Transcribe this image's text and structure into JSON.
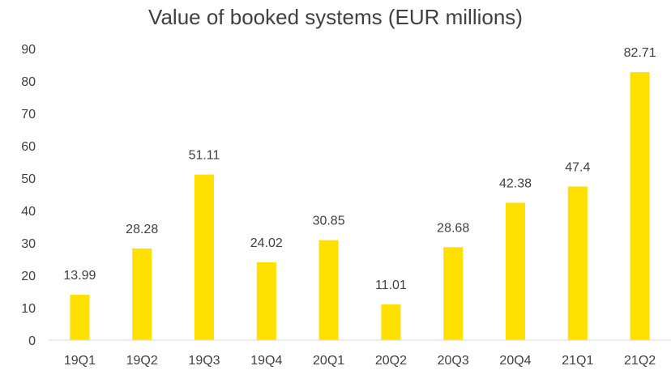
{
  "chart_data": {
    "type": "bar",
    "title": "Value of booked systems (EUR millions)",
    "categories": [
      "19Q1",
      "19Q2",
      "19Q3",
      "19Q4",
      "20Q1",
      "20Q2",
      "20Q3",
      "20Q4",
      "21Q1",
      "21Q2"
    ],
    "values": [
      13.99,
      28.28,
      51.11,
      24.02,
      30.85,
      11.01,
      28.68,
      42.38,
      47.4,
      82.71
    ],
    "value_labels": [
      "13.99",
      "28.28",
      "51.11",
      "24.02",
      "30.85",
      "11.01",
      "28.68",
      "42.38",
      "47.4",
      "82.71"
    ],
    "yticks": [
      "0",
      "10",
      "20",
      "30",
      "40",
      "50",
      "60",
      "70",
      "80",
      "90"
    ],
    "ylim": [
      0,
      90
    ],
    "xlabel": "",
    "ylabel": "",
    "grid": false,
    "bar_color": "#FFE000",
    "axis_color": "#d9d9d9",
    "text_color": "#404040"
  }
}
